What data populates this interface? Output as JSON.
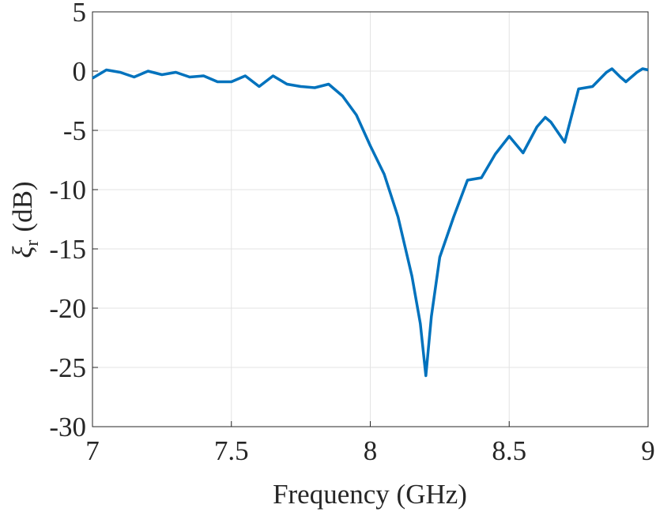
{
  "chart_data": {
    "type": "line",
    "xlabel": "Frequency (GHz)",
    "ylabel": [
      "ξ",
      "r",
      "(dB)"
    ],
    "x": [
      7.0,
      7.05,
      7.1,
      7.15,
      7.2,
      7.25,
      7.3,
      7.35,
      7.4,
      7.45,
      7.5,
      7.55,
      7.6,
      7.65,
      7.7,
      7.75,
      7.8,
      7.85,
      7.9,
      7.95,
      8.0,
      8.05,
      8.1,
      8.15,
      8.18,
      8.2,
      8.22,
      8.25,
      8.3,
      8.35,
      8.4,
      8.45,
      8.5,
      8.55,
      8.6,
      8.63,
      8.65,
      8.7,
      8.75,
      8.8,
      8.85,
      8.87,
      8.9,
      8.92,
      8.96,
      8.98,
      9.0
    ],
    "series": [
      {
        "color": "#0072bd",
        "values": [
          -0.6,
          0.1,
          -0.1,
          -0.5,
          0,
          -0.3,
          -0.1,
          -0.5,
          -0.4,
          -0.9,
          -0.9,
          -0.4,
          -1.3,
          -0.4,
          -1.1,
          -1.3,
          -1.4,
          -1.1,
          -2.1,
          -3.7,
          -6.3,
          -8.7,
          -12.3,
          -17.3,
          -21.3,
          -25.7,
          -20.7,
          -15.7,
          -12.3,
          -9.2,
          -9.0,
          -7.0,
          -5.5,
          -6.9,
          -4.7,
          -3.9,
          -4.3,
          -6.0,
          -1.5,
          -1.3,
          -0.1,
          0.2,
          -0.5,
          -0.9,
          -0.1,
          0.2,
          0.1
        ]
      }
    ],
    "xlim": [
      7,
      9
    ],
    "xticks": [
      7,
      7.5,
      8,
      8.5,
      9
    ],
    "ylim": [
      -30,
      5
    ],
    "yticks": [
      5,
      0,
      -5,
      -10,
      -15,
      -20,
      -25,
      -30
    ],
    "grid": true
  }
}
